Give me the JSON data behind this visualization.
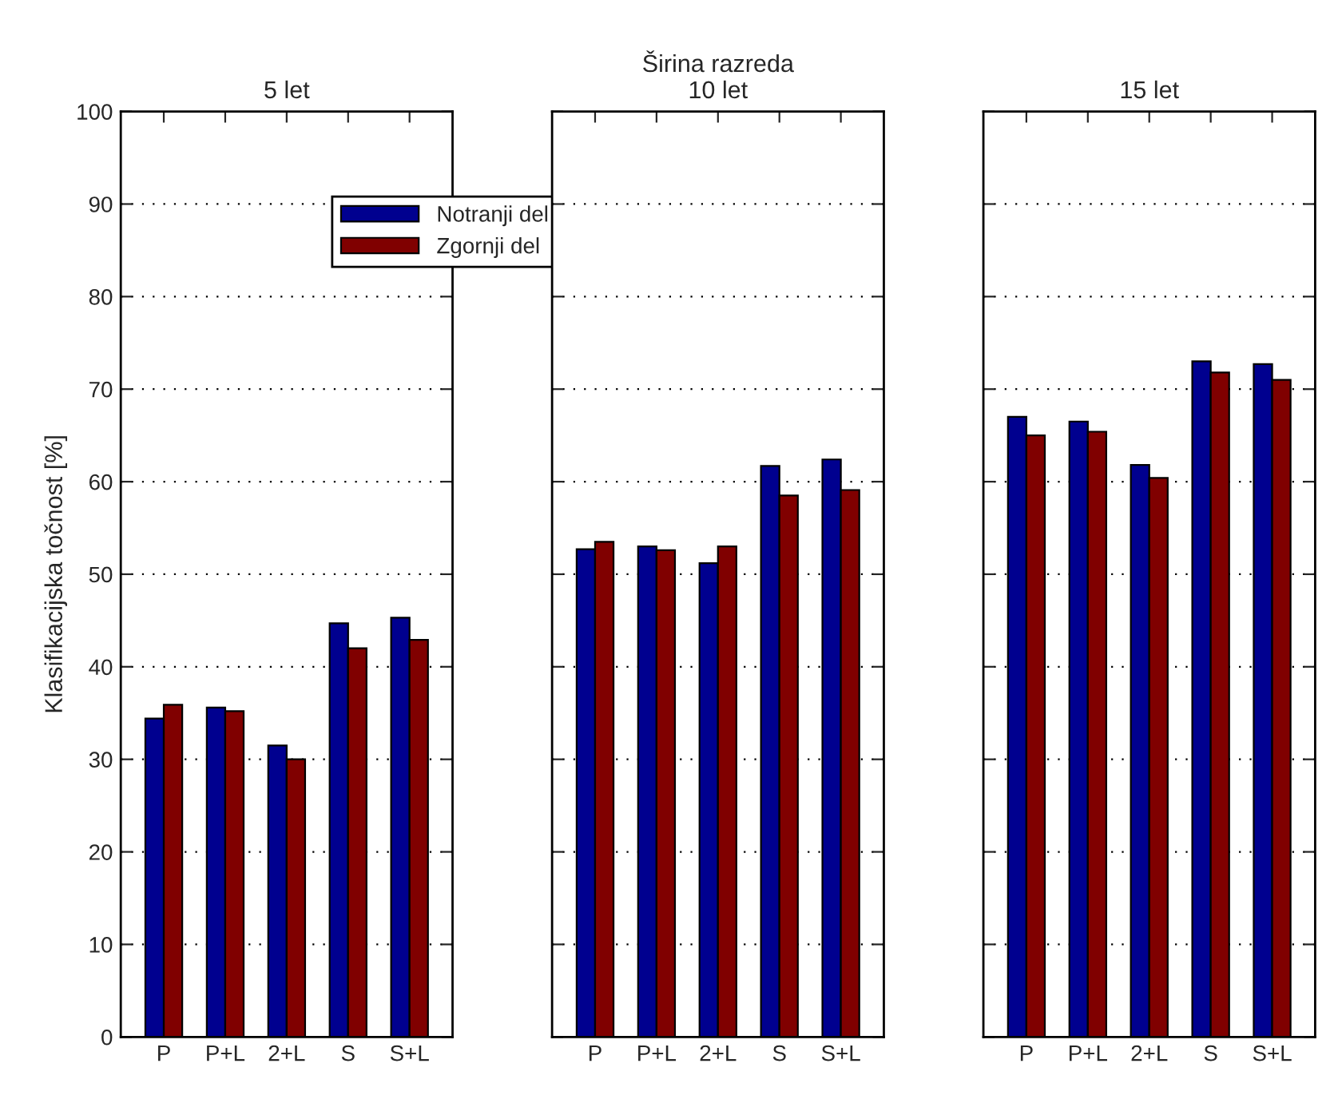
{
  "chart_data": [
    {
      "type": "bar",
      "subtitle": "5 let",
      "ylabel": "Klasifikacijska točnost [%]",
      "categories": [
        "P",
        "P+L",
        "2+L",
        "S",
        "S+L"
      ],
      "series": [
        {
          "name": "Notranji del",
          "color": "#00008f",
          "values": [
            34.4,
            35.6,
            31.5,
            44.7,
            45.3
          ]
        },
        {
          "name": "Zgornji del",
          "color": "#800000",
          "values": [
            35.9,
            35.2,
            30.0,
            42.0,
            42.9
          ]
        }
      ],
      "ylim": [
        0,
        100
      ],
      "yticks": [
        0,
        10,
        20,
        30,
        40,
        50,
        60,
        70,
        80,
        90,
        100
      ],
      "grid": "y",
      "legend": "top right"
    },
    {
      "type": "bar",
      "title": "Širina razreda",
      "subtitle": "10 let",
      "categories": [
        "P",
        "P+L",
        "2+L",
        "S",
        "S+L"
      ],
      "series": [
        {
          "color": "#00008f",
          "values": [
            52.7,
            53.0,
            51.2,
            61.7,
            62.4
          ]
        },
        {
          "color": "#800000",
          "values": [
            53.5,
            52.6,
            53.0,
            58.5,
            59.1
          ]
        }
      ],
      "ylim": [
        0,
        100
      ],
      "yticks": [
        0,
        10,
        20,
        30,
        40,
        50,
        60,
        70,
        80,
        90,
        100
      ],
      "grid": "y",
      "tick_labels": "x"
    },
    {
      "type": "bar",
      "subtitle": "15 let",
      "categories": [
        "P",
        "P+L",
        "2+L",
        "S",
        "S+L"
      ],
      "series": [
        {
          "color": "#00008f",
          "values": [
            67.0,
            66.5,
            61.8,
            73.0,
            72.7
          ]
        },
        {
          "color": "#800000",
          "values": [
            65.0,
            65.4,
            60.4,
            71.8,
            71.0
          ]
        }
      ],
      "ylim": [
        0,
        100
      ],
      "yticks": [
        0,
        10,
        20,
        30,
        40,
        50,
        60,
        70,
        80,
        90,
        100
      ],
      "grid": "y",
      "tick_labels": "x"
    }
  ]
}
